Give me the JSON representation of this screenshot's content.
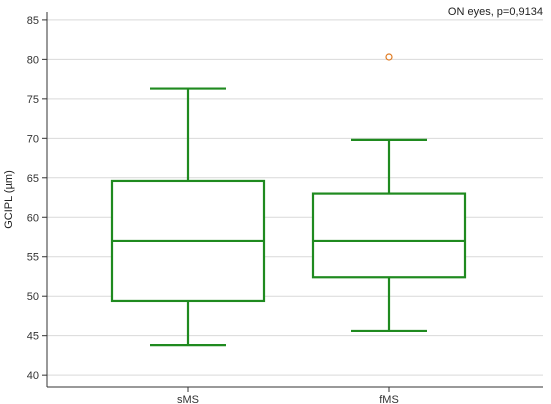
{
  "chart_data": {
    "type": "box",
    "title": "",
    "annotation": "ON eyes, p=0,9134",
    "xlabel": "",
    "ylabel": "GCIPL (µm)",
    "ylim": [
      38.5,
      86
    ],
    "yticks": [
      40,
      45,
      50,
      55,
      60,
      65,
      70,
      75,
      80,
      85
    ],
    "grid": "horizontal",
    "categories": [
      "sMS",
      "fMS"
    ],
    "boxes": [
      {
        "category": "sMS",
        "whisker_low": 43.8,
        "q1": 49.4,
        "median": 57.0,
        "q3": 64.6,
        "whisker_high": 76.3,
        "outliers": []
      },
      {
        "category": "fMS",
        "whisker_low": 45.6,
        "q1": 52.4,
        "median": 57.0,
        "q3": 63.0,
        "whisker_high": 69.8,
        "outliers": [
          80.3
        ]
      }
    ],
    "colors": {
      "box": "#1f8a1f",
      "outlier": "#e07b22",
      "grid": "#d9d9d9",
      "axis": "#333333"
    }
  }
}
